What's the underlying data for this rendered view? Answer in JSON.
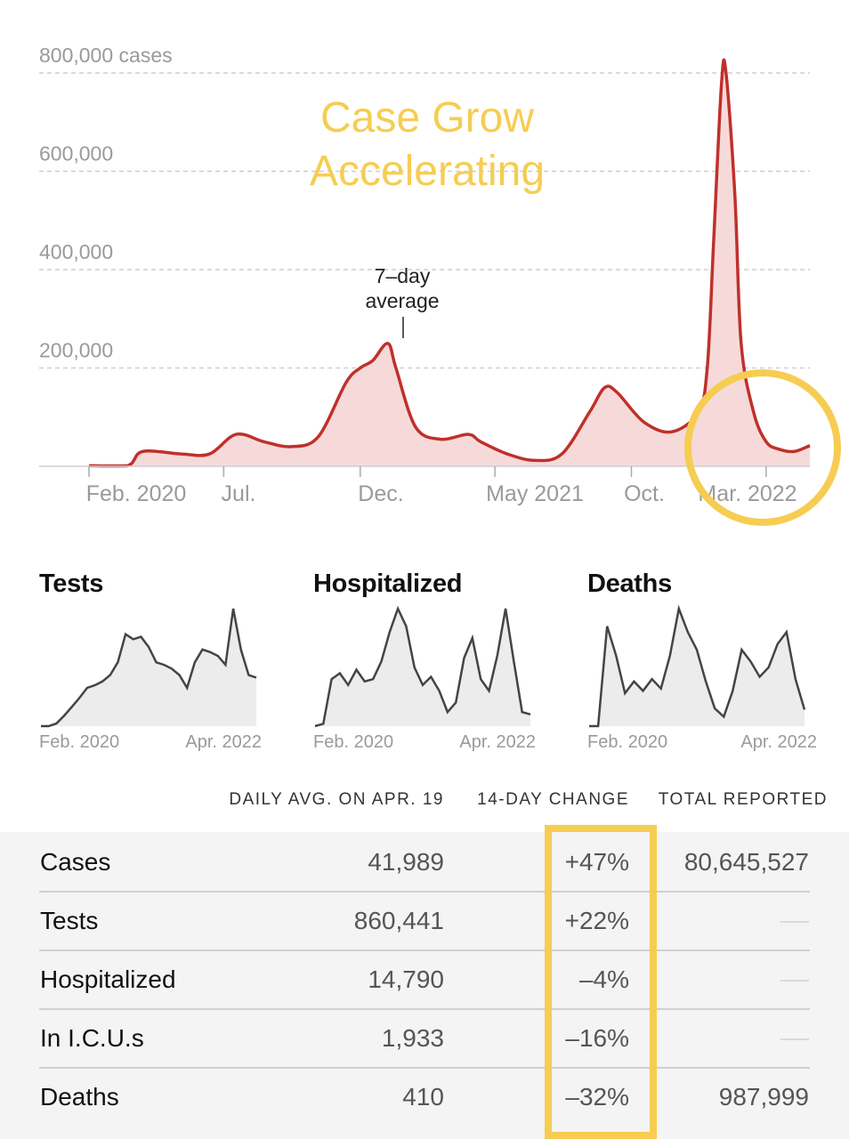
{
  "annotation": {
    "line1": "Case Grow",
    "line2": "Accelerating",
    "color": "#f6cd52"
  },
  "chart_data": [
    {
      "type": "area",
      "title": "",
      "ylabel_suffix": "cases",
      "y_ticks": [
        {
          "value": 200000,
          "label": "200,000"
        },
        {
          "value": 400000,
          "label": "400,000"
        },
        {
          "value": 600000,
          "label": "600,000"
        },
        {
          "value": 800000,
          "label": "800,000 cases"
        }
      ],
      "x_ticks": [
        "Feb. 2020",
        "Jul.",
        "Dec.",
        "May 2021",
        "Oct.",
        "Mar. 2022"
      ],
      "ylim": [
        0,
        800000
      ],
      "series": [
        {
          "name": "7-day average",
          "color": "#c0302b",
          "fill": "#f6dada",
          "x": [
            "2020-02-01",
            "2020-03-15",
            "2020-04-01",
            "2020-05-15",
            "2020-06-15",
            "2020-07-15",
            "2020-08-15",
            "2020-09-15",
            "2020-10-15",
            "2020-11-15",
            "2020-12-01",
            "2020-12-15",
            "2021-01-01",
            "2021-01-10",
            "2021-02-01",
            "2021-03-01",
            "2021-04-01",
            "2021-04-15",
            "2021-05-15",
            "2021-06-15",
            "2021-07-15",
            "2021-08-15",
            "2021-09-01",
            "2021-09-15",
            "2021-10-15",
            "2021-11-15",
            "2021-12-15",
            "2021-12-25",
            "2022-01-01",
            "2022-01-10",
            "2022-01-15",
            "2022-01-25",
            "2022-02-01",
            "2022-02-15",
            "2022-03-01",
            "2022-03-15",
            "2022-04-01",
            "2022-04-19"
          ],
          "values": [
            1000,
            1000,
            30000,
            25000,
            25000,
            65000,
            50000,
            40000,
            60000,
            170000,
            200000,
            215000,
            250000,
            200000,
            80000,
            55000,
            65000,
            50000,
            25000,
            12000,
            25000,
            110000,
            160000,
            150000,
            90000,
            70000,
            110000,
            200000,
            450000,
            780000,
            800000,
            550000,
            250000,
            110000,
            50000,
            35000,
            30000,
            41989
          ]
        }
      ],
      "annotations": [
        "7–day",
        "average"
      ],
      "highlight": "circle around Mar. 2022 decline"
    },
    {
      "type": "line",
      "title": "Tests",
      "x_labels": [
        "Feb. 2020",
        "Apr. 2022"
      ],
      "values": [
        0,
        0,
        2,
        8,
        15,
        22,
        30,
        32,
        35,
        40,
        50,
        72,
        68,
        70,
        62,
        50,
        48,
        45,
        40,
        30,
        50,
        60,
        58,
        55,
        48,
        92,
        60,
        40,
        38
      ]
    },
    {
      "type": "line",
      "title": "Hospitalized",
      "x_labels": [
        "Feb. 2020",
        "Apr. 2022"
      ],
      "values": [
        0,
        2,
        40,
        45,
        35,
        48,
        38,
        40,
        55,
        80,
        100,
        85,
        50,
        35,
        42,
        30,
        12,
        20,
        58,
        75,
        40,
        30,
        60,
        100,
        55,
        12,
        10
      ]
    },
    {
      "type": "line",
      "title": "Deaths",
      "x_labels": [
        "Feb. 2020",
        "Apr. 2022"
      ],
      "values": [
        0,
        0,
        85,
        60,
        28,
        38,
        30,
        40,
        32,
        60,
        100,
        80,
        65,
        38,
        15,
        8,
        30,
        65,
        55,
        42,
        50,
        70,
        80,
        40,
        14
      ]
    },
    {
      "type": "table",
      "columns": [
        "",
        "DAILY AVG. ON APR. 19",
        "14-DAY CHANGE",
        "TOTAL REPORTED"
      ],
      "rows": [
        {
          "label": "Cases",
          "avg": "41,989",
          "change": "+47%",
          "total": "80,645,527"
        },
        {
          "label": "Tests",
          "avg": "860,441",
          "change": "+22%",
          "total": "—"
        },
        {
          "label": "Hospitalized",
          "avg": "14,790",
          "change": "–4%",
          "total": "—"
        },
        {
          "label": "In I.C.U.s",
          "avg": "1,933",
          "change": "–16%",
          "total": "—"
        },
        {
          "label": "Deaths",
          "avg": "410",
          "change": "–32%",
          "total": "987,999"
        }
      ]
    }
  ]
}
